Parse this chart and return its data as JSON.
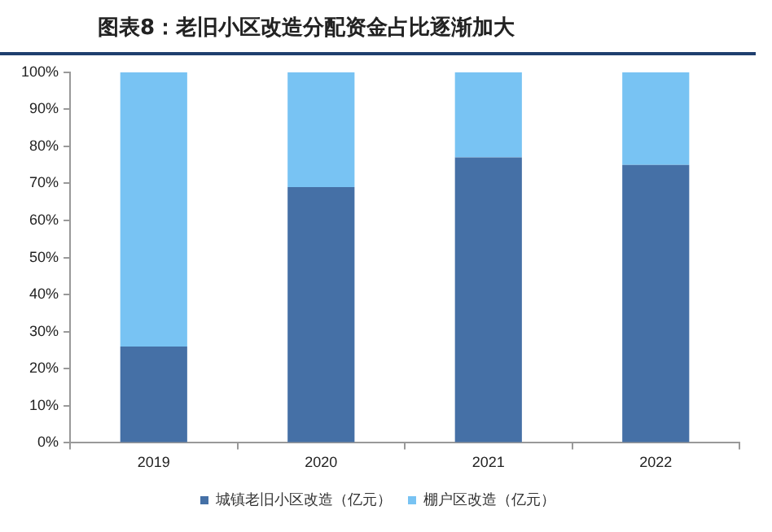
{
  "chart_data": {
    "type": "bar",
    "title": "图表8：老旧小区改造分配资金占比逐渐加大",
    "categories": [
      "2019",
      "2020",
      "2021",
      "2022"
    ],
    "stacked": true,
    "series": [
      {
        "name": "城镇老旧小区改造（亿元）",
        "color": "#4570a6",
        "values": [
          26,
          69,
          77,
          75
        ]
      },
      {
        "name": "棚户区改造（亿元）",
        "color": "#78c3f3",
        "values": [
          74,
          31,
          23,
          25
        ]
      }
    ],
    "ylim": [
      0,
      100
    ],
    "yticks": [
      {
        "value": 0,
        "label": "0%"
      },
      {
        "value": 10,
        "label": "10%"
      },
      {
        "value": 20,
        "label": "20%"
      },
      {
        "value": 30,
        "label": "30%"
      },
      {
        "value": 40,
        "label": "40%"
      },
      {
        "value": 50,
        "label": "50%"
      },
      {
        "value": 60,
        "label": "60%"
      },
      {
        "value": 70,
        "label": "70%"
      },
      {
        "value": 80,
        "label": "80%"
      },
      {
        "value": 90,
        "label": "90%"
      },
      {
        "value": 100,
        "label": "100%"
      }
    ],
    "grid": false,
    "legend": "bottom"
  }
}
